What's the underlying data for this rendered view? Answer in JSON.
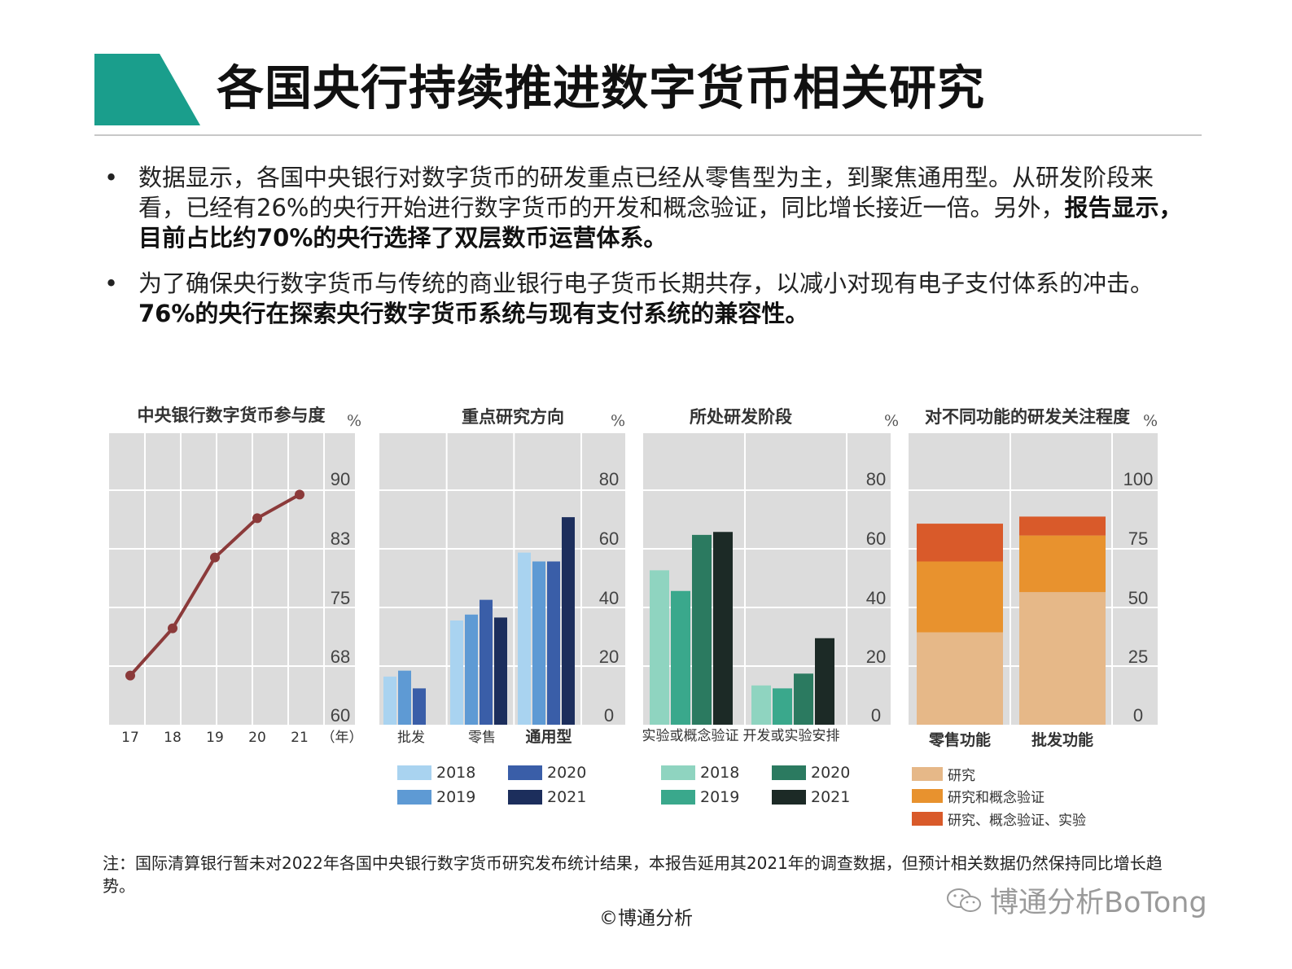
{
  "title": "各国央行持续推进数字货币相关研究",
  "bullets": [
    {
      "text": "数据显示，各国中央银行对数字货币的研发重点已经从零售型为主，到聚焦通用型。从研发阶段来看，已经有26%的央行开始进行数字货币的开发和概念验证，同比增长接近一倍。另外，",
      "bold": "报告显示，目前占比约70%的央行选择了双层数币运营体系。"
    },
    {
      "text": "为了确保央行数字货币与传统的商业银行电子货币长期共存，以减小对现有电子支付体系的冲击。",
      "bold": "76%的央行在探索央行数字货币系统与现有支付系统的兼容性。"
    }
  ],
  "unit_symbol": "%",
  "chart_data": [
    {
      "type": "line",
      "title": "中央银行数字货币参与度",
      "x": [
        "17",
        "18",
        "19",
        "20",
        "21"
      ],
      "x_unit_label": "（年）",
      "series": [
        {
          "values": [
            65,
            71,
            80,
            85,
            88
          ]
        }
      ],
      "yticks": [
        "60",
        "68",
        "75",
        "83",
        "90"
      ],
      "ylim": [
        60,
        90
      ],
      "grid": true,
      "colors": {
        "line": "#8b3a3a",
        "bg": "#dcdcdc"
      }
    },
    {
      "type": "bar",
      "title": "重点研究方向",
      "categories": [
        "批发",
        "零售",
        "通用型"
      ],
      "series": [
        {
          "name": "2018",
          "values": [
            13,
            32,
            55
          ]
        },
        {
          "name": "2019",
          "values": [
            15,
            34,
            52
          ]
        },
        {
          "name": "2020",
          "values": [
            9,
            39,
            52
          ]
        },
        {
          "name": "2021",
          "values": [
            null,
            33,
            67
          ]
        }
      ],
      "yticks": [
        "0",
        "20",
        "40",
        "60",
        "80"
      ],
      "ylim": [
        0,
        80
      ],
      "grid": true,
      "colors": {
        "2018": "#a9d3f0",
        "2019": "#5e9ad4",
        "2020": "#3a5ea8",
        "2021": "#1c2e5c"
      }
    },
    {
      "type": "bar",
      "title": "所处研发阶段",
      "categories": [
        "实验或概念验证",
        "开发或实验安排"
      ],
      "series": [
        {
          "name": "2018",
          "values": [
            49,
            10
          ]
        },
        {
          "name": "2019",
          "values": [
            42,
            9
          ]
        },
        {
          "name": "2020",
          "values": [
            61,
            14
          ]
        },
        {
          "name": "2021",
          "values": [
            62,
            26
          ]
        }
      ],
      "yticks": [
        "0",
        "20",
        "40",
        "60",
        "80"
      ],
      "ylim": [
        0,
        80
      ],
      "grid": true,
      "colors": {
        "2018": "#8fd4c0",
        "2019": "#3aa88c",
        "2020": "#2b7a60",
        "2021": "#1c2a26"
      }
    },
    {
      "type": "bar",
      "stacked": true,
      "title": "对不同功能的研发关注程度",
      "categories": [
        "零售功能",
        "批发功能"
      ],
      "series": [
        {
          "name": "研究",
          "values": [
            35,
            52
          ]
        },
        {
          "name": "研究和概念验证",
          "values": [
            30,
            24
          ]
        },
        {
          "name": "研究、概念验证、实验",
          "values": [
            16,
            8
          ]
        }
      ],
      "yticks": [
        "0",
        "25",
        "50",
        "75",
        "100"
      ],
      "ylim": [
        0,
        100
      ],
      "grid": true,
      "colors": {
        "研究": "#e6b888",
        "研究和概念验证": "#e8922e",
        "研究、概念验证、实验": "#d95a2a"
      }
    }
  ],
  "note": "注：国际清算银行暂未对2022年各国中央银行数字货币研究发布统计结果，本报告延用其2021年的调查数据，但预计相关数据仍然保持同比增长趋势。",
  "footer": "©博通分析",
  "watermark": "博通分析BoTong",
  "colors": {
    "accent": "#1a9e8c"
  }
}
